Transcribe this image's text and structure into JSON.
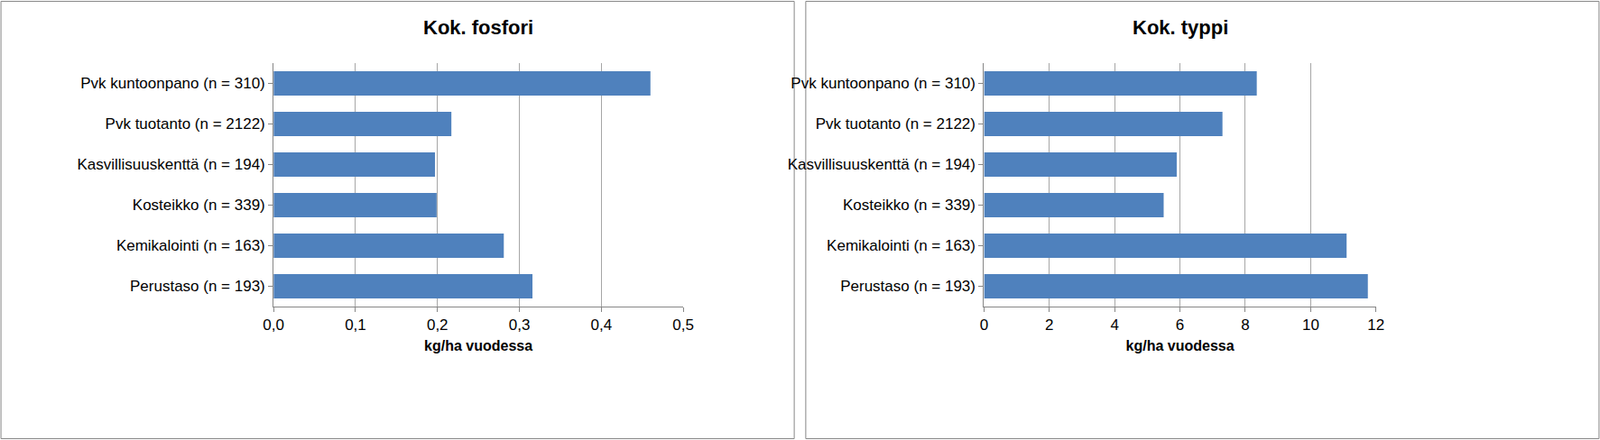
{
  "chart_data": [
    {
      "type": "bar",
      "orientation": "horizontal",
      "title": "Kok. fosfori",
      "x_label": "kg/ha vuodessa",
      "categories": [
        "Pvk kuntoonpano (n = 310)",
        "Pvk tuotanto (n = 2122)",
        "Kasvillisuuskenttä (n = 194)",
        "Kosteikko (n = 339)",
        "Kemikalointi (n = 163)",
        "Perustaso (n = 193)"
      ],
      "values": [
        0.46,
        0.217,
        0.197,
        0.199,
        0.281,
        0.316
      ],
      "color": "#4f81bd",
      "xlim": [
        0,
        0.5
      ],
      "xticks": [
        {
          "value": 0,
          "label": "0,0"
        },
        {
          "value": 0.1,
          "label": "0,1"
        },
        {
          "value": 0.2,
          "label": "0,2"
        },
        {
          "value": 0.3,
          "label": "0,3"
        },
        {
          "value": 0.4,
          "label": "0,4"
        },
        {
          "value": 0.5,
          "label": "0,5"
        }
      ],
      "grid": true
    },
    {
      "type": "bar",
      "orientation": "horizontal",
      "title": "Kok. typpi",
      "x_label": "kg/ha vuodessa",
      "categories": [
        "Pvk kuntoonpano (n = 310)",
        "Pvk tuotanto (n = 2122)",
        "Kasvillisuuskenttä (n = 194)",
        "Kosteikko (n = 339)",
        "Kemikalointi (n = 163)",
        "Perustaso (n = 193)"
      ],
      "values": [
        8.35,
        7.3,
        5.9,
        5.5,
        11.1,
        11.75
      ],
      "color": "#4f81bd",
      "xlim": [
        0,
        12
      ],
      "xticks": [
        0,
        2,
        4,
        6,
        8,
        10,
        12
      ],
      "grid": true
    }
  ]
}
